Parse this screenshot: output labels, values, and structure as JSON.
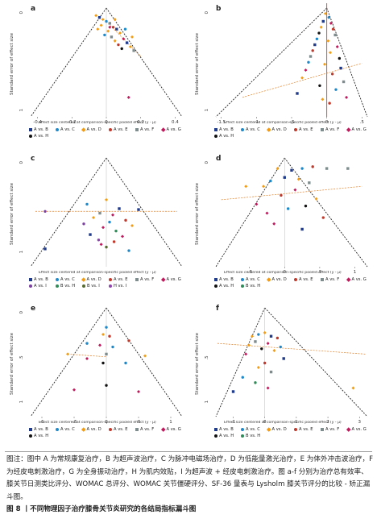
{
  "figure": {
    "note": "图注：图中 A 为常规康复治疗，B 为超声波治疗，C 为脉冲电磁场治疗，D 为低能量激光治疗，E 为体外冲击波治疗，F 为经皮电刺激治疗，G 为全身振动治疗，H 为肌内效贴，I 为超声波 + 经皮电刺激治疗。图 a-f 分别为治疗总有效率、膝关节日测类比评分、WOMAC 总评分、WOMAC 关节僵硬评分、SF-36 量表与 Lysholm 膝关节评分的比较 - 矫正漏斗图。",
    "title": "图 8 丨不同物理因子治疗膝骨关节炎研究的各结局指标漏斗图"
  },
  "colors": {
    "A vs. B": "#1f3a8a",
    "A vs. C": "#1e88c9",
    "A vs. D": "#f39c12",
    "A vs. E": "#c0392b",
    "A vs. F": "#7f8c8d",
    "A vs. G": "#c2185b",
    "A vs. H": "#111111",
    "A vs. I": "#7b3fa0",
    "B vs. H": "#2e8b57",
    "B vs. I": "#556b2f",
    "H vs. I": "#8e44ad"
  },
  "chart_data": [
    {
      "panel": "a",
      "type": "scatter",
      "ylabel": "Standard error of effect size",
      "xlabel": "Effect size centered at comparison-specific pooled effect (y - μ)",
      "xticks": [
        "-0.4",
        "-0.2",
        "0",
        "0.2",
        "0.4"
      ],
      "yticks": [
        "0",
        "1"
      ],
      "xlim": [
        -0.45,
        0.45
      ],
      "ylim": [
        0,
        1.1
      ],
      "legend": [
        "A vs. B",
        "A vs. C",
        "A vs. D",
        "A vs. E",
        "A vs. F",
        "A vs. G",
        "A vs. H"
      ],
      "points": [
        {
          "x": -0.06,
          "y": 0.06,
          "s": "A vs. D"
        },
        {
          "x": -0.04,
          "y": 0.08,
          "s": "A vs. B"
        },
        {
          "x": -0.02,
          "y": 0.1,
          "s": "A vs. D"
        },
        {
          "x": 0.0,
          "y": 0.12,
          "s": "A vs. C"
        },
        {
          "x": 0.02,
          "y": 0.14,
          "s": "A vs. F"
        },
        {
          "x": -0.03,
          "y": 0.16,
          "s": "A vs. D"
        },
        {
          "x": 0.04,
          "y": 0.18,
          "s": "A vs. E"
        },
        {
          "x": 0.06,
          "y": 0.2,
          "s": "A vs. B"
        },
        {
          "x": 0.01,
          "y": 0.22,
          "s": "A vs. D"
        },
        {
          "x": 0.08,
          "y": 0.24,
          "s": "A vs. D"
        },
        {
          "x": -0.01,
          "y": 0.26,
          "s": "A vs. C"
        },
        {
          "x": 0.03,
          "y": 0.28,
          "s": "A vs. F"
        },
        {
          "x": 0.1,
          "y": 0.3,
          "s": "A vs. G"
        },
        {
          "x": 0.05,
          "y": 0.32,
          "s": "A vs. D"
        },
        {
          "x": 0.12,
          "y": 0.34,
          "s": "A vs. B"
        },
        {
          "x": 0.07,
          "y": 0.36,
          "s": "A vs. E"
        },
        {
          "x": 0.14,
          "y": 0.38,
          "s": "A vs. D"
        },
        {
          "x": 0.09,
          "y": 0.4,
          "s": "A vs. H"
        },
        {
          "x": 0.16,
          "y": 0.42,
          "s": "A vs. F"
        },
        {
          "x": 0.02,
          "y": 0.18,
          "s": "A vs. G"
        },
        {
          "x": -0.05,
          "y": 0.2,
          "s": "A vs. D"
        },
        {
          "x": 0.05,
          "y": 0.1,
          "s": "A vs. D"
        },
        {
          "x": 0.11,
          "y": 0.2,
          "s": "A vs. C"
        },
        {
          "x": 0.15,
          "y": 0.28,
          "s": "A vs. D"
        },
        {
          "x": 0.13,
          "y": 0.9,
          "s": "A vs. G"
        }
      ],
      "trend": [
        [
          0.0,
          0.12
        ],
        [
          0.2,
          0.48
        ]
      ]
    },
    {
      "panel": "b",
      "type": "scatter",
      "ylabel": "Standard error of effect size",
      "xlabel": "Effect size centered at comparison-specific pooled effect (y - μ)",
      "xticks": [
        "-1.5",
        "-1",
        "-.5",
        "0",
        ".5"
      ],
      "yticks": [
        "0",
        "1"
      ],
      "xlim": [
        -1.6,
        0.6
      ],
      "ylim": [
        0,
        1.1
      ],
      "legend": [
        "A vs. B",
        "A vs. C",
        "A vs. D",
        "A vs. E",
        "A vs. F",
        "A vs. G",
        "A vs. H"
      ],
      "points": [
        {
          "x": -0.02,
          "y": 0.04,
          "s": "A vs. D"
        },
        {
          "x": 0.03,
          "y": 0.08,
          "s": "A vs. C"
        },
        {
          "x": -0.05,
          "y": 0.12,
          "s": "A vs. B"
        },
        {
          "x": 0.06,
          "y": 0.14,
          "s": "A vs. G"
        },
        {
          "x": -0.08,
          "y": 0.18,
          "s": "A vs. D"
        },
        {
          "x": 0.09,
          "y": 0.2,
          "s": "A vs. E"
        },
        {
          "x": -0.11,
          "y": 0.24,
          "s": "A vs. H"
        },
        {
          "x": 0.12,
          "y": 0.26,
          "s": "A vs. F"
        },
        {
          "x": -0.14,
          "y": 0.3,
          "s": "A vs. C"
        },
        {
          "x": 0.02,
          "y": 0.32,
          "s": "A vs. D"
        },
        {
          "x": -0.17,
          "y": 0.36,
          "s": "A vs. B"
        },
        {
          "x": 0.15,
          "y": 0.38,
          "s": "A vs. G"
        },
        {
          "x": -0.2,
          "y": 0.42,
          "s": "A vs. E"
        },
        {
          "x": 0.05,
          "y": 0.44,
          "s": "A vs. D"
        },
        {
          "x": -0.23,
          "y": 0.48,
          "s": "A vs. F"
        },
        {
          "x": 0.18,
          "y": 0.5,
          "s": "A vs. H"
        },
        {
          "x": -0.26,
          "y": 0.54,
          "s": "A vs. C"
        },
        {
          "x": -0.03,
          "y": 0.56,
          "s": "A vs. D"
        },
        {
          "x": 0.2,
          "y": 0.6,
          "s": "A vs. B"
        },
        {
          "x": -0.3,
          "y": 0.62,
          "s": "A vs. G"
        },
        {
          "x": 0.08,
          "y": 0.66,
          "s": "A vs. E"
        },
        {
          "x": -0.35,
          "y": 0.7,
          "s": "A vs. D"
        },
        {
          "x": 0.24,
          "y": 0.74,
          "s": "A vs. F"
        },
        {
          "x": -0.1,
          "y": 0.78,
          "s": "A vs. H"
        },
        {
          "x": 0.13,
          "y": 0.82,
          "s": "A vs. C"
        },
        {
          "x": -0.42,
          "y": 0.86,
          "s": "A vs. B"
        },
        {
          "x": 0.28,
          "y": 0.9,
          "s": "A vs. G"
        },
        {
          "x": -0.06,
          "y": 0.92,
          "s": "A vs. D"
        },
        {
          "x": 0.04,
          "y": 0.96,
          "s": "A vs. E"
        }
      ],
      "trend": [
        [
          -1.2,
          0.9
        ],
        [
          0.5,
          0.55
        ]
      ],
      "vline": 0
    },
    {
      "panel": "c",
      "type": "scatter",
      "ylabel": "Standard error of effect size",
      "xlabel": "Effect size centered at comparison-specific pooled effect (y - μ)",
      "xticks": [],
      "yticks": [
        "0",
        "1"
      ],
      "xlim": [
        -1.2,
        1.2
      ],
      "ylim": [
        0,
        1.2
      ],
      "legend": [
        "A vs. B",
        "A vs. C",
        "A vs. D",
        "A vs. E",
        "A vs. F",
        "A vs. G",
        "A vs. I",
        "B vs. H",
        "B vs. I",
        "H vs. I"
      ],
      "points": [
        {
          "x": -0.3,
          "y": 0.5,
          "s": "A vs. C"
        },
        {
          "x": 0.0,
          "y": 0.45,
          "s": "A vs. D"
        },
        {
          "x": 0.2,
          "y": 0.55,
          "s": "A vs. B"
        },
        {
          "x": -0.1,
          "y": 0.6,
          "s": "A vs. F"
        },
        {
          "x": 0.1,
          "y": 0.62,
          "s": "A vs. G"
        },
        {
          "x": -0.2,
          "y": 0.65,
          "s": "A vs. D"
        },
        {
          "x": 0.3,
          "y": 0.68,
          "s": "A vs. E"
        },
        {
          "x": 0.05,
          "y": 0.7,
          "s": "A vs. C"
        },
        {
          "x": -0.35,
          "y": 0.72,
          "s": "A vs. I"
        },
        {
          "x": 0.4,
          "y": 0.74,
          "s": "A vs. D"
        },
        {
          "x": -0.05,
          "y": 0.76,
          "s": "A vs. G"
        },
        {
          "x": 0.15,
          "y": 0.8,
          "s": "B vs. H"
        },
        {
          "x": -0.25,
          "y": 0.84,
          "s": "A vs. B"
        },
        {
          "x": 0.25,
          "y": 0.86,
          "s": "A vs. G"
        },
        {
          "x": -0.12,
          "y": 0.9,
          "s": "H vs. I"
        },
        {
          "x": 0.12,
          "y": 0.92,
          "s": "A vs. E"
        },
        {
          "x": 0.0,
          "y": 0.98,
          "s": "B vs. I"
        },
        {
          "x": -0.08,
          "y": 0.95,
          "s": "A vs. G"
        },
        {
          "x": 0.35,
          "y": 1.02,
          "s": "A vs. C"
        },
        {
          "x": -0.95,
          "y": 0.58,
          "s": "A vs. I"
        },
        {
          "x": -0.95,
          "y": 1.0,
          "s": "A vs. B"
        },
        {
          "x": 0.5,
          "y": 0.56,
          "s": "A vs. B"
        }
      ],
      "trend": [
        [
          -1.1,
          0.58
        ],
        [
          1.1,
          0.58
        ]
      ]
    },
    {
      "panel": "d",
      "type": "scatter",
      "ylabel": "Standard error of effect size",
      "xlabel": "Effect size centered at comparison-specific pooled effect (y - μ)",
      "xticks": [
        "-.5",
        "0",
        ".5",
        "1"
      ],
      "yticks": [
        "0"
      ],
      "xlim": [
        -1.0,
        1.2
      ],
      "ylim": [
        0,
        1.2
      ],
      "legend": [
        "A vs. B",
        "A vs. C",
        "A vs. D",
        "A vs. E",
        "A vs. F",
        "A vs. G",
        "A vs. H",
        "B vs. H"
      ],
      "points": [
        {
          "x": -0.1,
          "y": 0.1,
          "s": "A vs. D"
        },
        {
          "x": 0.1,
          "y": 0.12,
          "s": "A vs. B"
        },
        {
          "x": 0.25,
          "y": 0.1,
          "s": "A vs. C"
        },
        {
          "x": 0.4,
          "y": 0.08,
          "s": "A vs. E"
        },
        {
          "x": 0.6,
          "y": 0.1,
          "s": "A vs. F"
        },
        {
          "x": 0.0,
          "y": 0.2,
          "s": "A vs. B"
        },
        {
          "x": 0.2,
          "y": 0.22,
          "s": "A vs. D"
        },
        {
          "x": -0.2,
          "y": 0.24,
          "s": "A vs. C"
        },
        {
          "x": 0.35,
          "y": 0.26,
          "s": "A vs. F"
        },
        {
          "x": -0.3,
          "y": 0.3,
          "s": "A vs. D"
        },
        {
          "x": 0.15,
          "y": 0.34,
          "s": "A vs. G"
        },
        {
          "x": -0.05,
          "y": 0.4,
          "s": "A vs. E"
        },
        {
          "x": 0.45,
          "y": 0.44,
          "s": "A vs. D"
        },
        {
          "x": -0.4,
          "y": 0.5,
          "s": "A vs. G"
        },
        {
          "x": 0.3,
          "y": 0.52,
          "s": "A vs. H"
        },
        {
          "x": 0.05,
          "y": 0.55,
          "s": "A vs. C"
        },
        {
          "x": -0.25,
          "y": 0.6,
          "s": "A vs. G"
        },
        {
          "x": 0.55,
          "y": 0.65,
          "s": "A vs. E"
        },
        {
          "x": -0.55,
          "y": 0.3,
          "s": "A vs. D"
        },
        {
          "x": 0.9,
          "y": 0.1,
          "s": "A vs. F"
        },
        {
          "x": -0.15,
          "y": 0.72,
          "s": "A vs. G"
        },
        {
          "x": 0.25,
          "y": 0.78,
          "s": "A vs. B"
        }
      ],
      "trend": [
        [
          -0.9,
          0.45
        ],
        [
          1.1,
          0.3
        ]
      ]
    },
    {
      "panel": "e",
      "type": "scatter",
      "ylabel": "Standard error of effect size",
      "xlabel": "Effect size centered at comparison-specific pooled effect (y - μ)",
      "xticks": [
        "-1",
        "-.5",
        "0",
        ".5",
        "1"
      ],
      "yticks": [
        "0",
        ".5",
        "1"
      ],
      "xlim": [
        -1.2,
        1.2
      ],
      "ylim": [
        0,
        1.2
      ],
      "legend": [
        "A vs. B",
        "A vs. C",
        "A vs. D",
        "A vs. E",
        "A vs. F",
        "A vs. G",
        "A vs. H"
      ],
      "points": [
        {
          "x": 0.0,
          "y": 0.2,
          "s": "A vs. C"
        },
        {
          "x": -0.05,
          "y": 0.28,
          "s": "A vs. D"
        },
        {
          "x": 0.05,
          "y": 0.3,
          "s": "A vs. E"
        },
        {
          "x": -0.1,
          "y": 0.4,
          "s": "A vs. G"
        },
        {
          "x": 0.1,
          "y": 0.42,
          "s": "A vs. C"
        },
        {
          "x": 0.0,
          "y": 0.5,
          "s": "A vs. F"
        },
        {
          "x": -0.6,
          "y": 0.5,
          "s": "A vs. D"
        },
        {
          "x": 0.6,
          "y": 0.52,
          "s": "A vs. D"
        },
        {
          "x": -0.05,
          "y": 0.6,
          "s": "A vs. H"
        },
        {
          "x": -0.3,
          "y": 0.55,
          "s": "A vs. G"
        },
        {
          "x": 0.3,
          "y": 0.6,
          "s": "A vs. C"
        },
        {
          "x": -0.5,
          "y": 0.9,
          "s": "A vs. G"
        },
        {
          "x": 0.5,
          "y": 0.92,
          "s": "A vs. G"
        },
        {
          "x": 0.0,
          "y": 0.85,
          "s": "A vs. H"
        },
        {
          "x": -0.3,
          "y": 0.38,
          "s": "A vs. C"
        },
        {
          "x": 0.35,
          "y": 0.35,
          "s": "A vs. E"
        }
      ],
      "trend": [
        [
          -0.6,
          0.5
        ],
        [
          0.0,
          0.53
        ]
      ]
    },
    {
      "panel": "f",
      "type": "scatter",
      "ylabel": "Standard error of effect size",
      "xlabel": "Effect size centered at comparison-specific pooled effect (y - μ)",
      "xticks": [
        "-1",
        "0",
        "1",
        "2",
        "3"
      ],
      "yticks": [
        ".5",
        "1"
      ],
      "xlim": [
        -1.6,
        3.3
      ],
      "ylim": [
        0,
        1.2
      ],
      "legend": [
        "A vs. B",
        "A vs. C",
        "A vs. D",
        "A vs. E",
        "A vs. F",
        "A vs. G",
        "A vs. H",
        "B vs. H"
      ],
      "points": [
        {
          "x": -0.4,
          "y": 0.3,
          "s": "A vs. D"
        },
        {
          "x": -0.2,
          "y": 0.28,
          "s": "A vs. C"
        },
        {
          "x": 0.0,
          "y": 0.26,
          "s": "A vs. D"
        },
        {
          "x": 0.2,
          "y": 0.3,
          "s": "A vs. B"
        },
        {
          "x": 0.4,
          "y": 0.32,
          "s": "A vs. E"
        },
        {
          "x": -0.3,
          "y": 0.36,
          "s": "A vs. F"
        },
        {
          "x": 0.1,
          "y": 0.38,
          "s": "A vs. G"
        },
        {
          "x": -0.5,
          "y": 0.4,
          "s": "A vs. D"
        },
        {
          "x": 0.5,
          "y": 0.42,
          "s": "A vs. C"
        },
        {
          "x": -0.1,
          "y": 0.44,
          "s": "A vs. H"
        },
        {
          "x": 0.3,
          "y": 0.46,
          "s": "A vs. D"
        },
        {
          "x": -0.6,
          "y": 0.5,
          "s": "A vs. G"
        },
        {
          "x": 0.6,
          "y": 0.55,
          "s": "A vs. B"
        },
        {
          "x": 0.0,
          "y": 0.6,
          "s": "A vs. E"
        },
        {
          "x": -0.2,
          "y": 0.65,
          "s": "A vs. D"
        },
        {
          "x": 0.2,
          "y": 0.7,
          "s": "A vs. F"
        },
        {
          "x": -0.7,
          "y": 0.76,
          "s": "A vs. C"
        },
        {
          "x": -0.3,
          "y": 0.82,
          "s": "B vs. H"
        },
        {
          "x": 0.1,
          "y": 0.88,
          "s": "A vs. G"
        },
        {
          "x": 2.8,
          "y": 0.88,
          "s": "A vs. D"
        },
        {
          "x": -1.0,
          "y": 0.92,
          "s": "A vs. B"
        }
      ],
      "trend": [
        [
          -1.5,
          0.38
        ],
        [
          3.2,
          0.5
        ]
      ]
    }
  ]
}
